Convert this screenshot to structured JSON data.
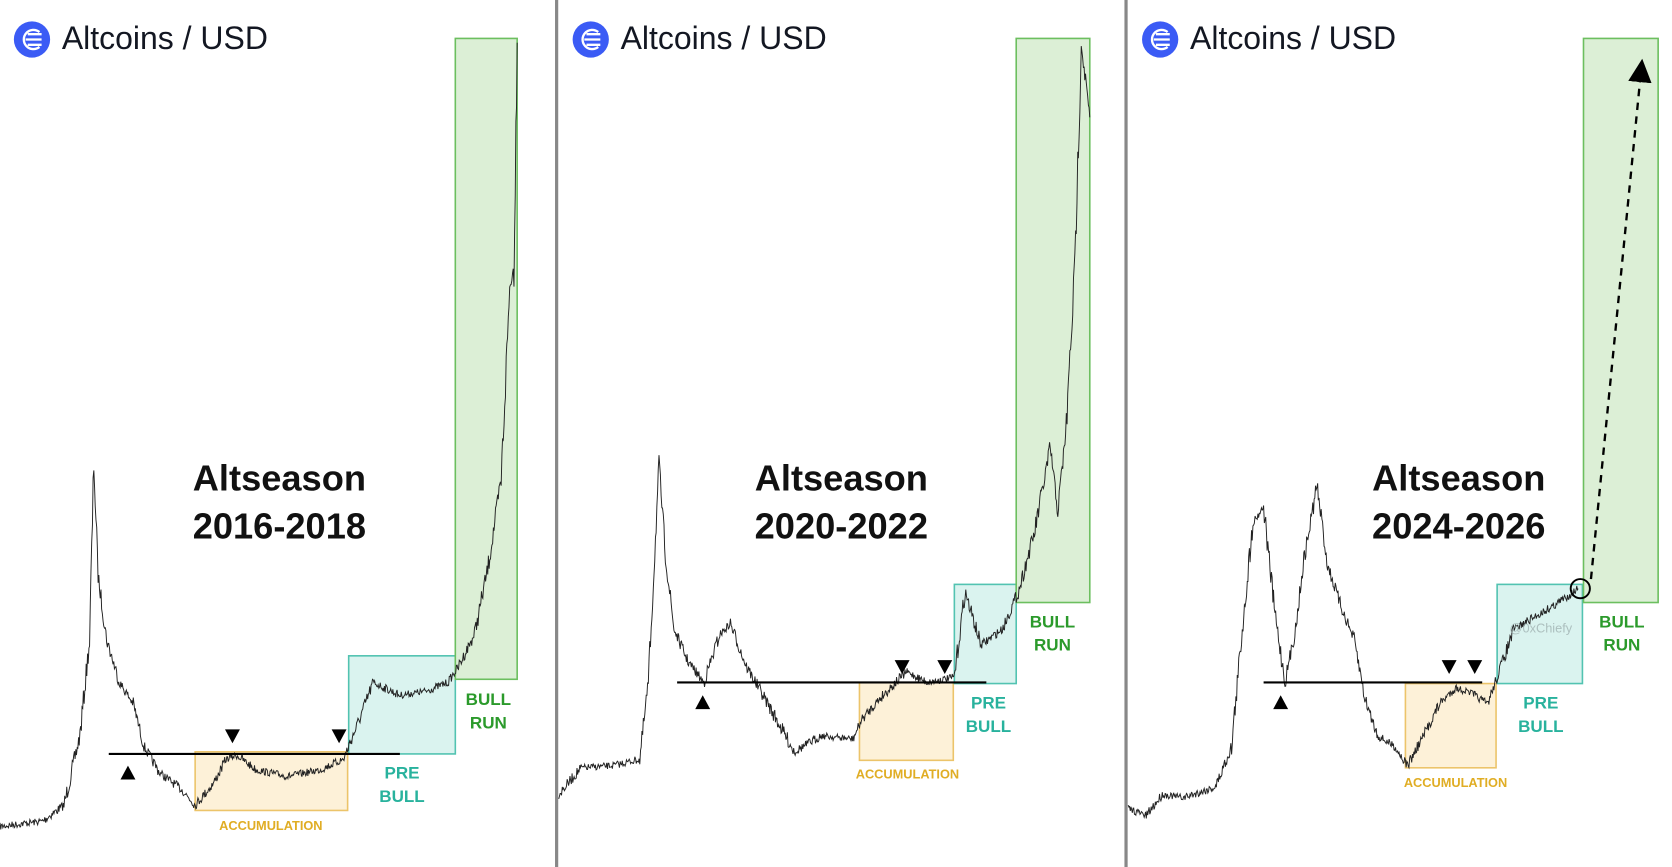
{
  "panels": [
    {
      "header": "Altcoins / USD",
      "title": [
        "Altseason",
        "2016-2018"
      ],
      "zones": {
        "accumulation": "ACCUMULATION",
        "pre_bull": [
          "PRE",
          "BULL"
        ],
        "bull_run": [
          "BULL",
          "RUN"
        ]
      }
    },
    {
      "header": "Altcoins / USD",
      "title": [
        "Altseason",
        "2020-2022"
      ],
      "zones": {
        "accumulation": "ACCUMULATION",
        "pre_bull": [
          "PRE",
          "BULL"
        ],
        "bull_run": [
          "BULL",
          "RUN"
        ]
      }
    },
    {
      "header": "Altcoins / USD",
      "title": [
        "Altseason",
        "2024-2026"
      ],
      "zones": {
        "accumulation": "ACCUMULATION",
        "pre_bull": [
          "PRE",
          "BULL"
        ],
        "bull_run": [
          "BULL",
          "RUN"
        ]
      },
      "watermark": "@0xChiefy"
    }
  ]
}
